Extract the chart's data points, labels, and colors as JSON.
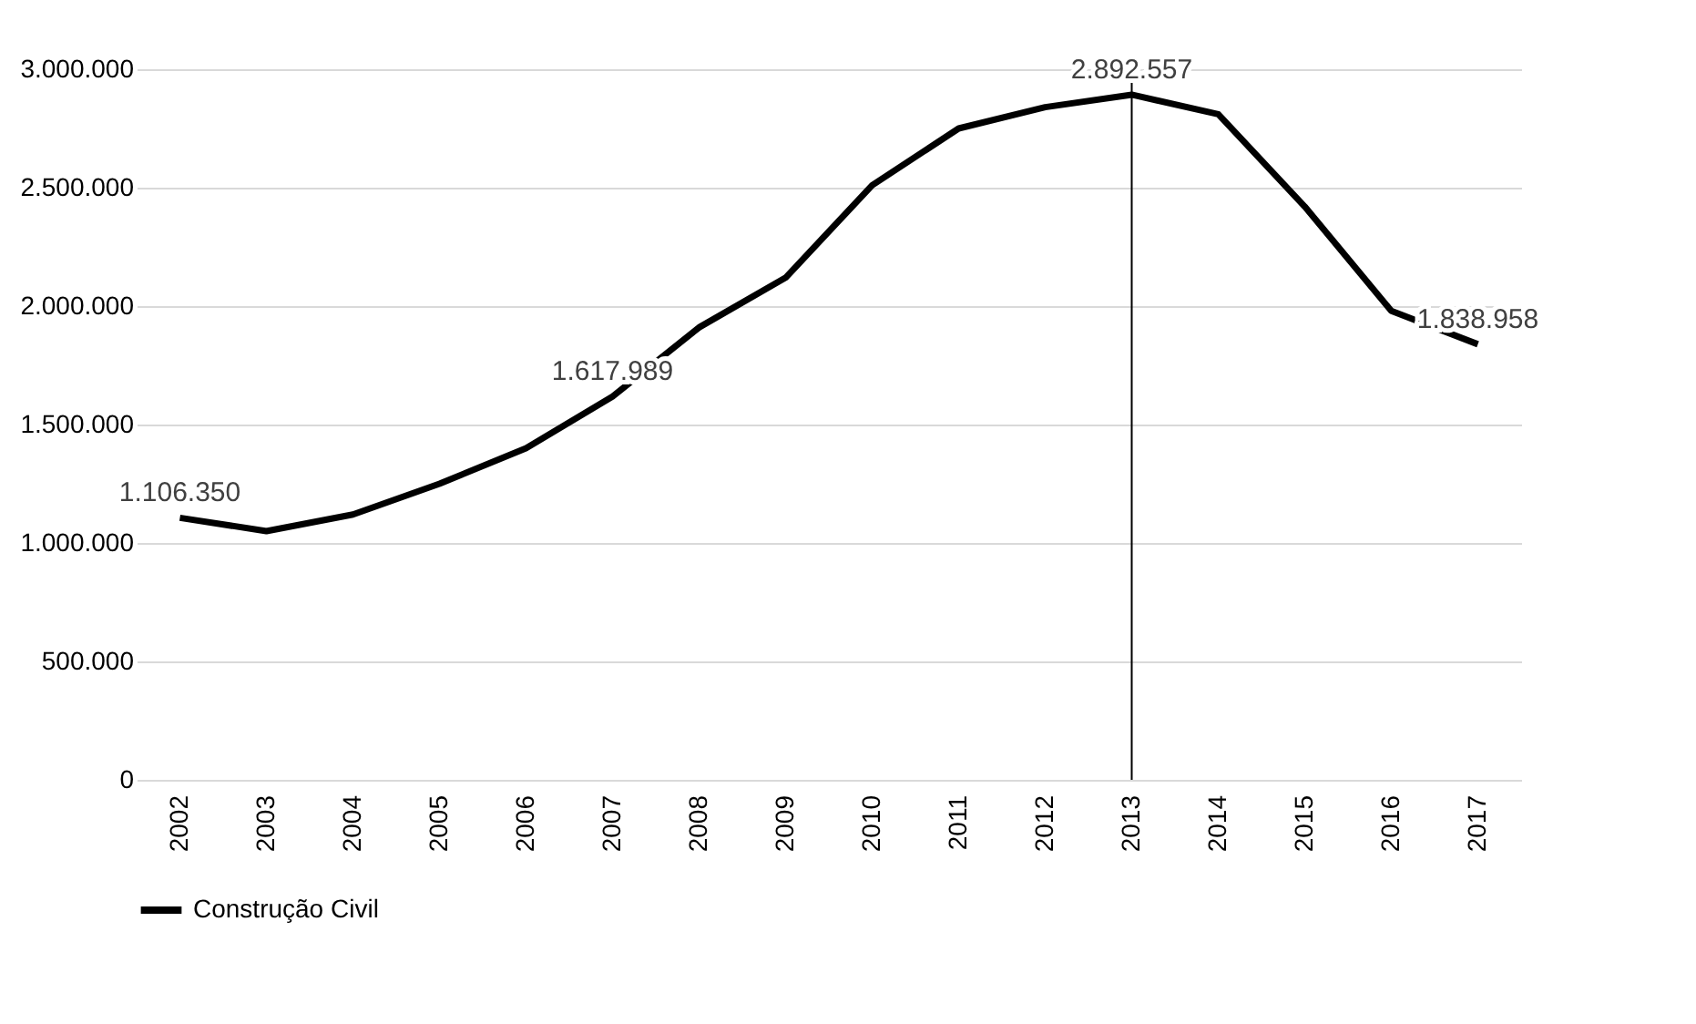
{
  "chart_data": {
    "type": "line",
    "categories": [
      "2002",
      "2003",
      "2004",
      "2005",
      "2006",
      "2007",
      "2008",
      "2009",
      "2010",
      "2011",
      "2012",
      "2013",
      "2014",
      "2015",
      "2016",
      "2017"
    ],
    "series": [
      {
        "name": "Construção Civil",
        "color": "#000000",
        "values": [
          1106350,
          1050000,
          1120000,
          1250000,
          1400000,
          1617989,
          1910000,
          2120000,
          2510000,
          2750000,
          2840000,
          2892557,
          2810000,
          2420000,
          1980000,
          1838958
        ],
        "value_labels": [
          "1.106.350",
          null,
          null,
          null,
          null,
          "1.617.989",
          null,
          null,
          null,
          null,
          null,
          "2.892.557",
          null,
          null,
          null,
          "1.838.958"
        ]
      }
    ],
    "ylim": [
      0,
      3000000
    ],
    "yticks": [
      0,
      {
        "value": 500000,
        "label": "500.000"
      },
      {
        "value": 1000000,
        "label": "1.000.000"
      },
      {
        "value": 1500000,
        "label": "1.500.000"
      },
      {
        "value": 2000000,
        "label": "2.000.000"
      },
      {
        "value": 2500000,
        "label": "2.500.000"
      },
      {
        "value": 3000000,
        "label": "3.000.000"
      }
    ],
    "ref_lines": [
      {
        "axis": "x",
        "value": "2013",
        "color": "#000000"
      }
    ],
    "grid": "y",
    "legend": "bottom",
    "marker": "none",
    "line_style": "solid"
  }
}
